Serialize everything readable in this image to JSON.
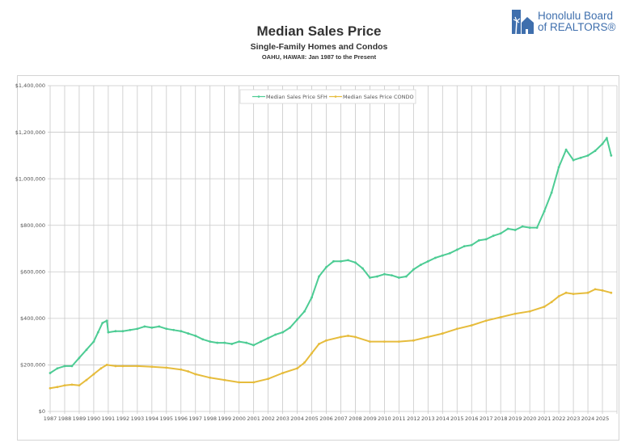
{
  "logo": {
    "line1": "Honolulu Board",
    "line2": "of REALTORS®",
    "color": "#3f6fad"
  },
  "chart_data": {
    "type": "line",
    "title": "Median Sales Price",
    "subtitle": "Single-Family Homes and Condos",
    "caption": "OAHU, HAWAII: Jan 1987 to the Present",
    "xlabel": "",
    "ylabel": "",
    "xlim": [
      1987,
      2026
    ],
    "ylim": [
      0,
      1400000
    ],
    "grid": true,
    "legend_position": "top-center",
    "x_tick_labels": [
      "1987",
      "1988",
      "1989",
      "1990",
      "1991",
      "1992",
      "1993",
      "1994",
      "1995",
      "1996",
      "1997",
      "1998",
      "1999",
      "2000",
      "2001",
      "2002",
      "2003",
      "2004",
      "2005",
      "2006",
      "2007",
      "2008",
      "2009",
      "2010",
      "2011",
      "2012",
      "2013",
      "2014",
      "2015",
      "2016",
      "2017",
      "2018",
      "2019",
      "2020",
      "2021",
      "2022",
      "2023",
      "2024",
      "2025"
    ],
    "y_ticks": [
      0,
      200000,
      400000,
      600000,
      800000,
      1000000,
      1200000,
      1400000
    ],
    "y_tick_labels": [
      "$0",
      "$200,000",
      "$400,000",
      "$600,000",
      "$800,000",
      "$1,000,000",
      "$1,200,000",
      "$1,400,000"
    ],
    "series": [
      {
        "name": "Median Sales Price SFH",
        "color": "#4dcc94",
        "x": [
          1987.0,
          1987.5,
          1988.0,
          1988.5,
          1989.0,
          1989.5,
          1990.0,
          1990.3,
          1990.6,
          1990.9,
          1991.0,
          1991.5,
          1992.0,
          1992.5,
          1993.0,
          1993.5,
          1994.0,
          1994.5,
          1995.0,
          1995.5,
          1996.0,
          1996.5,
          1997.0,
          1997.5,
          1998.0,
          1998.5,
          1999.0,
          1999.5,
          2000.0,
          2000.5,
          2001.0,
          2001.5,
          2002.0,
          2002.5,
          2003.0,
          2003.5,
          2004.0,
          2004.5,
          2005.0,
          2005.5,
          2006.0,
          2006.5,
          2007.0,
          2007.5,
          2008.0,
          2008.5,
          2009.0,
          2009.5,
          2010.0,
          2010.5,
          2011.0,
          2011.5,
          2012.0,
          2012.5,
          2013.0,
          2013.5,
          2014.0,
          2014.5,
          2015.0,
          2015.5,
          2016.0,
          2016.5,
          2017.0,
          2017.5,
          2018.0,
          2018.5,
          2019.0,
          2019.5,
          2020.0,
          2020.5,
          2021.0,
          2021.5,
          2022.0,
          2022.5,
          2023.0,
          2023.5,
          2024.0,
          2024.5,
          2025.0,
          2025.3,
          2025.6
        ],
        "values": [
          165000,
          185000,
          195000,
          195000,
          230000,
          265000,
          300000,
          340000,
          380000,
          390000,
          340000,
          345000,
          345000,
          350000,
          355000,
          365000,
          360000,
          365000,
          355000,
          350000,
          345000,
          335000,
          325000,
          310000,
          300000,
          295000,
          295000,
          290000,
          300000,
          295000,
          285000,
          300000,
          315000,
          330000,
          340000,
          360000,
          395000,
          430000,
          490000,
          580000,
          620000,
          645000,
          645000,
          650000,
          640000,
          615000,
          575000,
          580000,
          590000,
          585000,
          575000,
          580000,
          610000,
          630000,
          645000,
          660000,
          670000,
          680000,
          695000,
          710000,
          715000,
          735000,
          740000,
          755000,
          765000,
          785000,
          780000,
          795000,
          790000,
          790000,
          860000,
          940000,
          1050000,
          1125000,
          1080000,
          1090000,
          1100000,
          1120000,
          1150000,
          1175000,
          1100000
        ]
      },
      {
        "name": "Median Sales Price CONDO",
        "color": "#e6bc3c",
        "x": [
          1987.0,
          1987.5,
          1988.0,
          1988.5,
          1989.0,
          1989.5,
          1990.0,
          1990.5,
          1990.9,
          1991.5,
          1992.0,
          1993.0,
          1994.0,
          1995.0,
          1996.0,
          1996.5,
          1997.0,
          1998.0,
          1999.0,
          2000.0,
          2001.0,
          2002.0,
          2003.0,
          2004.0,
          2004.5,
          2005.0,
          2005.5,
          2006.0,
          2007.0,
          2007.5,
          2008.0,
          2009.0,
          2010.0,
          2011.0,
          2012.0,
          2013.0,
          2014.0,
          2015.0,
          2016.0,
          2017.0,
          2018.0,
          2019.0,
          2020.0,
          2021.0,
          2021.5,
          2022.0,
          2022.5,
          2023.0,
          2024.0,
          2024.5,
          2025.0,
          2025.6
        ],
        "values": [
          100000,
          105000,
          112000,
          115000,
          112000,
          135000,
          160000,
          185000,
          200000,
          195000,
          195000,
          195000,
          192000,
          188000,
          180000,
          172000,
          160000,
          145000,
          135000,
          125000,
          125000,
          140000,
          165000,
          185000,
          210000,
          250000,
          290000,
          305000,
          320000,
          325000,
          320000,
          300000,
          300000,
          300000,
          305000,
          320000,
          335000,
          355000,
          370000,
          390000,
          405000,
          420000,
          430000,
          450000,
          470000,
          495000,
          510000,
          505000,
          510000,
          525000,
          520000,
          510000
        ]
      }
    ]
  }
}
